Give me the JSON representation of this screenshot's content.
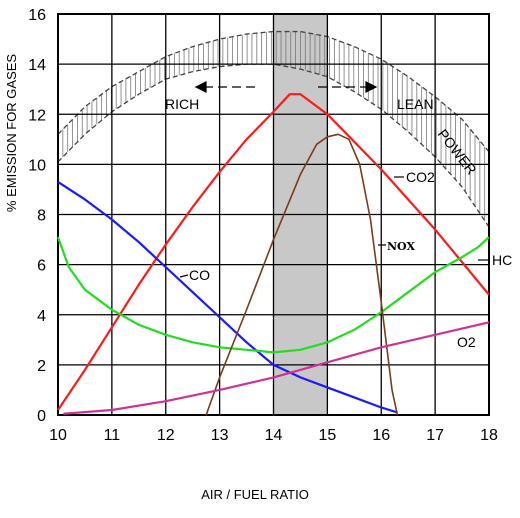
{
  "chart_data": {
    "type": "line",
    "title": "",
    "xlabel": "AIR / FUEL RATIO",
    "ylabel": "% EMISSION FOR GASES",
    "xlim": [
      10,
      18
    ],
    "ylim": [
      0,
      16
    ],
    "x_ticks": [
      "10",
      "11",
      "12",
      "13",
      "14",
      "15",
      "16",
      "17",
      "18"
    ],
    "y_ticks": [
      "0",
      "2",
      "4",
      "6",
      "8",
      "10",
      "12",
      "14",
      "16"
    ],
    "grid": true,
    "shaded_band": {
      "x": [
        14,
        15
      ],
      "color": "#c8c8c8"
    },
    "annotations": {
      "rich": "RICH",
      "lean": "LEAN",
      "power": "POWER",
      "co2": "CO2",
      "nox": "NOX",
      "hc": "HC",
      "co": "CO",
      "o2": "O2"
    },
    "series": [
      {
        "name": "CO2",
        "color": "#ff1a1a",
        "points": [
          [
            10,
            0.2
          ],
          [
            10.5,
            1.8
          ],
          [
            11,
            3.5
          ],
          [
            11.5,
            5.2
          ],
          [
            12,
            6.8
          ],
          [
            12.5,
            8.3
          ],
          [
            13,
            9.7
          ],
          [
            13.5,
            11.0
          ],
          [
            14,
            12.1
          ],
          [
            14.3,
            12.8
          ],
          [
            14.5,
            12.8
          ],
          [
            15,
            12.0
          ],
          [
            15.5,
            10.9
          ],
          [
            16,
            9.8
          ],
          [
            16.5,
            8.6
          ],
          [
            17,
            7.4
          ],
          [
            17.5,
            6.1
          ],
          [
            18,
            4.8
          ]
        ]
      },
      {
        "name": "CO",
        "color": "#1a1aff",
        "points": [
          [
            10,
            9.3
          ],
          [
            10.5,
            8.6
          ],
          [
            11,
            7.8
          ],
          [
            11.5,
            6.9
          ],
          [
            12,
            5.9
          ],
          [
            12.5,
            4.9
          ],
          [
            13,
            3.9
          ],
          [
            13.5,
            2.9
          ],
          [
            14,
            2.0
          ],
          [
            14.5,
            1.5
          ],
          [
            15,
            1.1
          ],
          [
            15.5,
            0.7
          ],
          [
            16,
            0.3
          ],
          [
            16.3,
            0.1
          ]
        ]
      },
      {
        "name": "HC",
        "color": "#22dd22",
        "points": [
          [
            10,
            7.1
          ],
          [
            10.2,
            5.9
          ],
          [
            10.5,
            5.0
          ],
          [
            11,
            4.2
          ],
          [
            11.5,
            3.6
          ],
          [
            12,
            3.2
          ],
          [
            12.5,
            2.9
          ],
          [
            13,
            2.7
          ],
          [
            13.5,
            2.6
          ],
          [
            14,
            2.5
          ],
          [
            14.5,
            2.6
          ],
          [
            15,
            2.9
          ],
          [
            15.5,
            3.4
          ],
          [
            16,
            4.1
          ],
          [
            16.5,
            4.9
          ],
          [
            17,
            5.7
          ],
          [
            17.5,
            6.3
          ],
          [
            17.8,
            6.7
          ],
          [
            18,
            7.1
          ]
        ]
      },
      {
        "name": "NOX",
        "color": "#7a3b1a",
        "points": [
          [
            12.75,
            0.0
          ],
          [
            13,
            1.5
          ],
          [
            13.5,
            4.2
          ],
          [
            14,
            7.0
          ],
          [
            14.5,
            9.6
          ],
          [
            14.8,
            10.8
          ],
          [
            15,
            11.1
          ],
          [
            15.2,
            11.2
          ],
          [
            15.4,
            11.0
          ],
          [
            15.6,
            10.0
          ],
          [
            15.8,
            7.8
          ],
          [
            16,
            4.5
          ],
          [
            16.2,
            1.0
          ],
          [
            16.3,
            0.0
          ]
        ]
      },
      {
        "name": "O2",
        "color": "#cc3399",
        "points": [
          [
            10.1,
            0.05
          ],
          [
            11,
            0.2
          ],
          [
            12,
            0.55
          ],
          [
            13,
            1.0
          ],
          [
            14,
            1.5
          ],
          [
            15,
            2.1
          ],
          [
            16,
            2.7
          ],
          [
            17,
            3.2
          ],
          [
            18,
            3.7
          ]
        ]
      }
    ],
    "power_band": {
      "upper": [
        [
          10,
          11.2
        ],
        [
          10.5,
          12.3
        ],
        [
          11,
          13.1
        ],
        [
          11.5,
          13.7
        ],
        [
          12,
          14.3
        ],
        [
          12.5,
          14.7
        ],
        [
          13,
          15.0
        ],
        [
          13.5,
          15.2
        ],
        [
          14,
          15.3
        ],
        [
          14.5,
          15.3
        ],
        [
          15,
          15.1
        ],
        [
          15.5,
          14.7
        ],
        [
          16,
          14.2
        ],
        [
          16.5,
          13.5
        ],
        [
          17,
          12.7
        ],
        [
          17.5,
          11.8
        ],
        [
          18,
          10.5
        ]
      ],
      "lower": [
        [
          10,
          10.1
        ],
        [
          10.5,
          11.2
        ],
        [
          11,
          12.1
        ],
        [
          11.5,
          12.8
        ],
        [
          12,
          13.4
        ],
        [
          12.5,
          13.7
        ],
        [
          13,
          13.9
        ],
        [
          13.5,
          14.0
        ],
        [
          14,
          14.0
        ],
        [
          14.5,
          13.8
        ],
        [
          15,
          13.5
        ],
        [
          15.5,
          12.9
        ],
        [
          16,
          12.2
        ],
        [
          16.5,
          11.3
        ],
        [
          17,
          10.3
        ],
        [
          17.5,
          9.1
        ],
        [
          18,
          7.5
        ]
      ]
    }
  }
}
